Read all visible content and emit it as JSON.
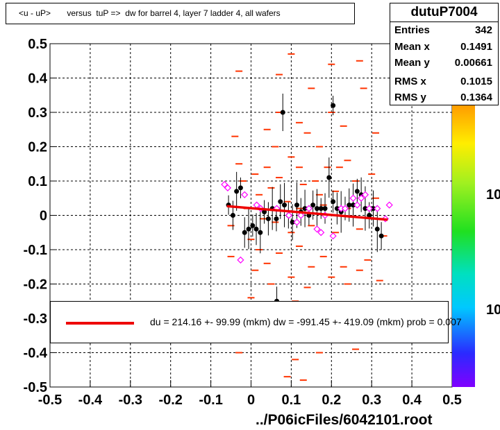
{
  "title": "<u - uP>       versus  tuP =>  dw for barrel 4, layer 7 ladder 4, all wafers",
  "stats": {
    "name": "dutuP7004",
    "rows": [
      {
        "label": "Entries",
        "value": "342"
      },
      {
        "label": "Mean x",
        "value": "0.1491"
      },
      {
        "label": "Mean y",
        "value": "0.00661"
      },
      {
        "label": "RMS x",
        "value": "0.1015"
      },
      {
        "label": "RMS y",
        "value": "0.1364"
      }
    ]
  },
  "fit_legend": "du =  214.16 +- 99.99 (mkm) dw = -991.45 +- 419.09 (mkm) prob = 0.007",
  "footer": "../P06icFiles/6042101.root",
  "palette_labels": [
    "10",
    "10"
  ],
  "colors": {
    "hist_bins": "#ff3300",
    "profile_markers": "#000000",
    "open_markers": "#ff00ff",
    "fit_line": "#ee0000"
  },
  "chart_data": {
    "type": "scatter",
    "xlim": [
      -0.5,
      0.5
    ],
    "ylim": [
      -0.5,
      0.5
    ],
    "xticks": [
      "-0.5",
      "-0.4",
      "-0.3",
      "-0.2",
      "-0.1",
      "0",
      "0.1",
      "0.2",
      "0.3",
      "0.4",
      "0.5"
    ],
    "yticks": [
      "-0.5",
      "-0.4",
      "-0.3",
      "-0.2",
      "-0.1",
      "0",
      "0.1",
      "0.2",
      "0.3",
      "0.4",
      "0.5"
    ],
    "grid": true,
    "colz_bins": [
      [
        0.1,
        0.47
      ],
      [
        0.27,
        0.45
      ],
      [
        0.2,
        0.44
      ],
      [
        0.07,
        0.41
      ],
      [
        -0.03,
        0.42
      ],
      [
        0.15,
        0.37
      ],
      [
        0.28,
        0.37
      ],
      [
        0.07,
        0.3
      ],
      [
        0.12,
        0.27
      ],
      [
        0.23,
        0.26
      ],
      [
        0.2,
        0.3
      ],
      [
        0.04,
        0.25
      ],
      [
        -0.04,
        0.23
      ],
      [
        0.14,
        0.24
      ],
      [
        0.31,
        0.24
      ],
      [
        0.06,
        0.2
      ],
      [
        0.17,
        0.2
      ],
      [
        -0.03,
        0.15
      ],
      [
        0.1,
        0.17
      ],
      [
        0.24,
        0.16
      ],
      [
        0.19,
        0.14
      ],
      [
        0.04,
        0.14
      ],
      [
        0.22,
        0.14
      ],
      [
        0.01,
        0.12
      ],
      [
        0.12,
        0.14
      ],
      [
        0.3,
        0.12
      ],
      [
        -0.02,
        0.1
      ],
      [
        0.07,
        0.11
      ],
      [
        0.16,
        0.1
      ],
      [
        0.26,
        0.1
      ],
      [
        0.13,
        0.09
      ],
      [
        0.05,
        0.08
      ],
      [
        0.21,
        0.07
      ],
      [
        0.31,
        0.05
      ],
      [
        0.02,
        0.06
      ],
      [
        0.28,
        0.06
      ],
      [
        0.09,
        0.04
      ],
      [
        0.18,
        0.03
      ],
      [
        0.12,
        0.02
      ],
      [
        0.24,
        0.02
      ],
      [
        0.03,
        -0.01
      ],
      [
        0.06,
        -0.02
      ],
      [
        -0.05,
        -0.03
      ],
      [
        0.15,
        -0.03
      ],
      [
        0.27,
        -0.04
      ],
      [
        0.1,
        -0.05
      ],
      [
        0.21,
        -0.05
      ],
      [
        0.33,
        -0.06
      ],
      [
        0.0,
        -0.07
      ],
      [
        0.12,
        -0.09
      ],
      [
        0.07,
        -0.11
      ],
      [
        0.18,
        -0.12
      ],
      [
        0.29,
        -0.13
      ],
      [
        -0.05,
        -0.12
      ],
      [
        0.04,
        -0.14
      ],
      [
        0.15,
        -0.15
      ],
      [
        0.27,
        -0.16
      ],
      [
        0.01,
        -0.16
      ],
      [
        0.1,
        -0.18
      ],
      [
        0.2,
        -0.18
      ],
      [
        0.32,
        -0.19
      ],
      [
        0.05,
        -0.2
      ],
      [
        0.14,
        -0.21
      ],
      [
        0.24,
        -0.2
      ],
      [
        0.0,
        -0.24
      ],
      [
        0.11,
        -0.25
      ],
      [
        0.22,
        -0.26
      ],
      [
        0.19,
        -0.3
      ],
      [
        0.26,
        -0.39
      ],
      [
        0.17,
        -0.4
      ],
      [
        0.11,
        -0.42
      ],
      [
        0.09,
        -0.47
      ],
      [
        0.13,
        -0.48
      ],
      [
        -0.03,
        -0.4
      ],
      [
        0.3,
        -0.33
      ],
      [
        0.08,
        -0.34
      ],
      [
        0.23,
        -0.15
      ],
      [
        0.02,
        -0.1
      ],
      [
        -0.01,
        0.02
      ],
      [
        0.17,
        0.06
      ]
    ],
    "profile": [
      [
        -0.056,
        0.03
      ],
      [
        -0.045,
        0.0
      ],
      [
        -0.036,
        0.07
      ],
      [
        -0.026,
        0.08
      ],
      [
        -0.016,
        -0.05
      ],
      [
        -0.006,
        -0.04
      ],
      [
        0.004,
        -0.03
      ],
      [
        0.013,
        -0.04
      ],
      [
        0.023,
        -0.05
      ],
      [
        0.033,
        0.01
      ],
      [
        0.043,
        -0.01
      ],
      [
        0.053,
        0.02
      ],
      [
        0.063,
        -0.01
      ],
      [
        0.073,
        0.04
      ],
      [
        0.083,
        0.03
      ],
      [
        0.093,
        0.0
      ],
      [
        0.103,
        -0.02
      ],
      [
        0.114,
        0.03
      ],
      [
        0.124,
        0.01
      ],
      [
        0.134,
        0.02
      ],
      [
        0.144,
        0.0
      ],
      [
        0.154,
        0.03
      ],
      [
        0.164,
        0.02
      ],
      [
        0.174,
        0.02
      ],
      [
        0.184,
        0.02
      ],
      [
        0.194,
        0.11
      ],
      [
        0.204,
        0.04
      ],
      [
        0.214,
        0.02
      ],
      [
        0.224,
        0.01
      ],
      [
        0.234,
        0.02
      ],
      [
        0.244,
        0.03
      ],
      [
        0.254,
        0.03
      ],
      [
        0.264,
        0.07
      ],
      [
        0.274,
        0.06
      ],
      [
        0.284,
        0.02
      ],
      [
        0.294,
        0.0
      ],
      [
        0.304,
        0.02
      ],
      [
        0.314,
        -0.04
      ],
      [
        0.324,
        -0.06
      ],
      [
        0.079,
        0.3
      ],
      [
        0.204,
        0.32
      ],
      [
        0.064,
        -0.25
      ]
    ],
    "open_points": [
      [
        -0.066,
        0.09
      ],
      [
        -0.058,
        0.08
      ],
      [
        -0.026,
        -0.13
      ],
      [
        -0.016,
        0.06
      ],
      [
        0.014,
        0.03
      ],
      [
        0.024,
        0.02
      ],
      [
        0.064,
        0.02
      ],
      [
        0.094,
        0.0
      ],
      [
        0.114,
        -0.02
      ],
      [
        0.124,
        0.0
      ],
      [
        0.144,
        0.02
      ],
      [
        0.164,
        -0.04
      ],
      [
        0.174,
        -0.05
      ],
      [
        0.184,
        0.0
      ],
      [
        0.204,
        -0.06
      ],
      [
        0.224,
        0.02
      ],
      [
        0.234,
        0.02
      ],
      [
        0.254,
        0.05
      ],
      [
        0.264,
        0.03
      ],
      [
        0.274,
        0.05
      ],
      [
        0.284,
        0.06
      ],
      [
        0.294,
        0.02
      ],
      [
        0.314,
        0.02
      ],
      [
        0.334,
        -0.01
      ],
      [
        0.344,
        0.03
      ]
    ],
    "fit": {
      "x": [
        -0.06,
        0.34
      ],
      "y": [
        0.0268,
        -0.0126
      ]
    }
  }
}
